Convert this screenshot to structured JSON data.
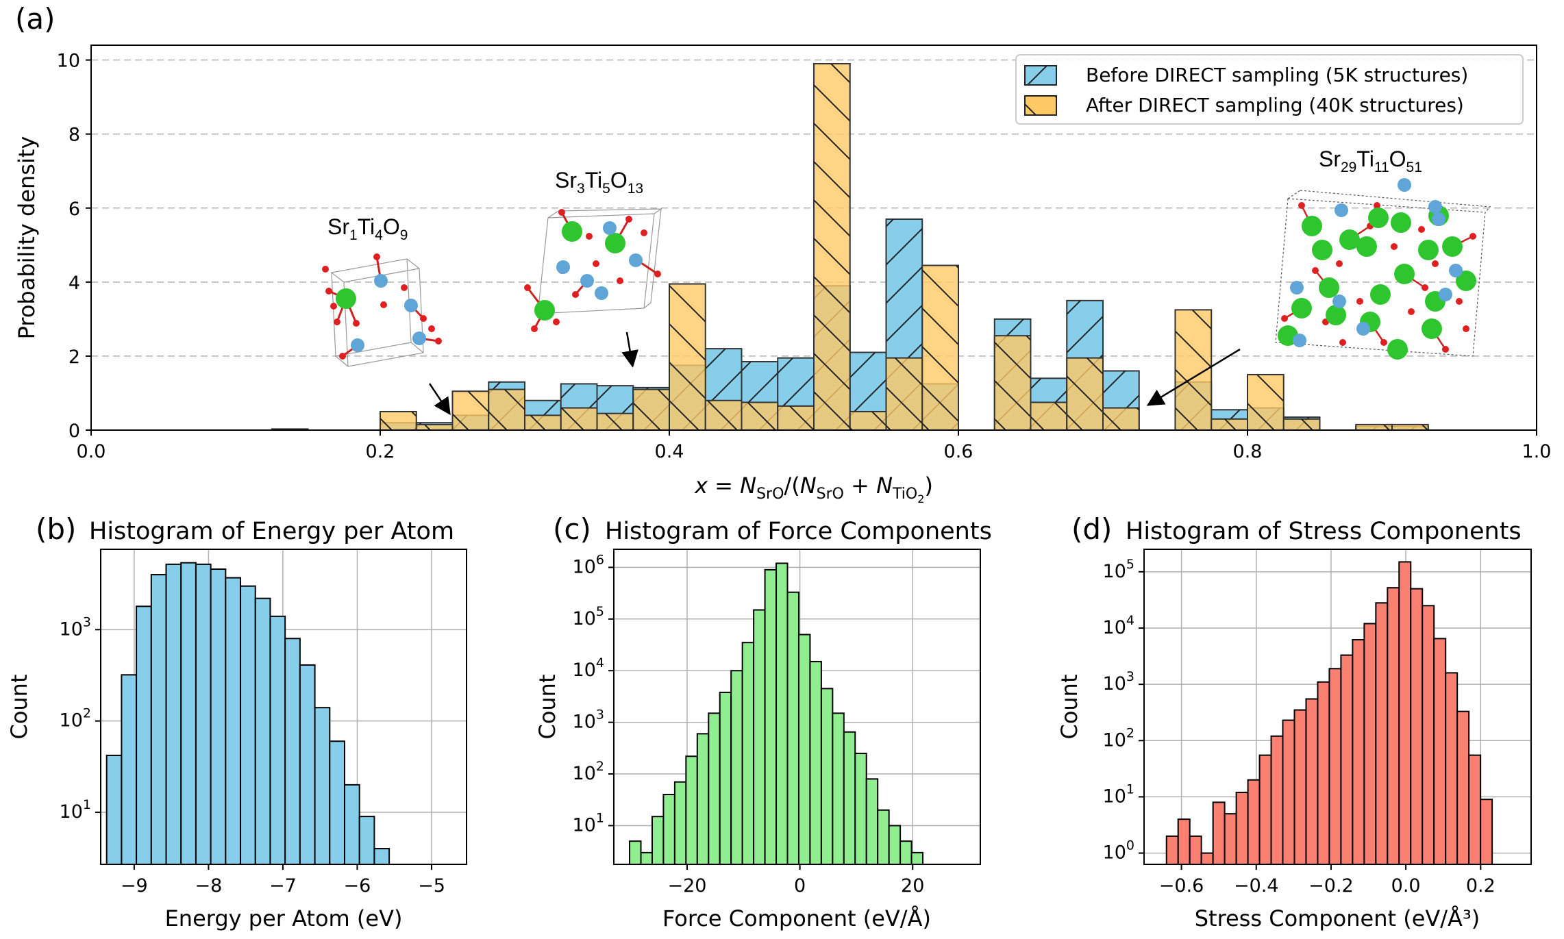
{
  "figure": {
    "panel_a": {
      "label": "(a)",
      "chart_data": {
        "type": "bar",
        "ylabel": "Probability density",
        "xlabel": "x = N_SrO/(N_SrO + N_TiO2)",
        "xlim": [
          0.0,
          1.0
        ],
        "ylim": [
          0,
          10.4
        ],
        "xticks": [
          "0.0",
          "0.2",
          "0.4",
          "0.6",
          "0.8",
          "1.0"
        ],
        "yticks": [
          "0",
          "2",
          "4",
          "6",
          "8",
          "10"
        ],
        "bin_width": 0.025,
        "series": [
          {
            "name": "Before DIRECT sampling (5K structures)",
            "color": "#87CEEB",
            "bins_left": [
              0.125,
              0.2,
              0.225,
              0.25,
              0.275,
              0.3,
              0.325,
              0.35,
              0.375,
              0.4,
              0.425,
              0.45,
              0.475,
              0.5,
              0.525,
              0.55,
              0.575,
              0.625,
              0.65,
              0.675,
              0.7,
              0.75,
              0.775,
              0.8,
              0.825,
              0.875,
              0.9
            ],
            "values": [
              0.03,
              0.2,
              0.2,
              0.4,
              1.3,
              0.8,
              1.25,
              1.2,
              1.15,
              1.75,
              2.2,
              1.85,
              1.95,
              3.9,
              2.1,
              5.7,
              1.25,
              3.0,
              1.4,
              3.5,
              1.6,
              1.3,
              0.55,
              0.6,
              0.35,
              0.1,
              0.1
            ]
          },
          {
            "name": "After DIRECT sampling (40K structures)",
            "color": "#FFC966",
            "bins_left": [
              0.125,
              0.2,
              0.225,
              0.25,
              0.275,
              0.3,
              0.325,
              0.35,
              0.375,
              0.4,
              0.425,
              0.45,
              0.475,
              0.5,
              0.525,
              0.55,
              0.575,
              0.625,
              0.65,
              0.675,
              0.7,
              0.75,
              0.775,
              0.8,
              0.825,
              0.875,
              0.9
            ],
            "values": [
              0.01,
              0.5,
              0.15,
              1.05,
              1.1,
              0.4,
              0.6,
              0.45,
              1.1,
              3.95,
              0.8,
              0.75,
              0.65,
              9.9,
              0.5,
              1.95,
              4.45,
              2.55,
              0.75,
              1.95,
              0.6,
              3.25,
              0.3,
              1.5,
              0.3,
              0.15,
              0.15
            ]
          }
        ]
      },
      "annotations": {
        "sr1_prefix": "Sr",
        "sr1_n": "1",
        "sr1_ti": "Ti",
        "sr1_tin": "4",
        "sr1_o": "O",
        "sr1_on": "9",
        "sr3_prefix": "Sr",
        "sr3_n": "3",
        "sr3_ti": "Ti",
        "sr3_tin": "5",
        "sr3_o": "O",
        "sr3_on": "13",
        "sr29_prefix": "Sr",
        "sr29_n": "29",
        "sr29_ti": "Ti",
        "sr29_tin": "11",
        "sr29_o": "O",
        "sr29_on": "51"
      }
    },
    "panel_b": {
      "label": "(b)",
      "title": "Histogram of Energy per Atom",
      "chart_data": {
        "type": "bar",
        "scale": "log",
        "xlabel": "Energy per Atom (eV)",
        "ylabel": "Count",
        "color": "#87CEEB",
        "xlim": [
          -9.45,
          -4.53
        ],
        "ylim_log10": [
          0.43,
          3.88
        ],
        "xticks": [
          "−9",
          "−8",
          "−7",
          "−6",
          "−5"
        ],
        "bin_start": -9.37,
        "bin_width": 0.2,
        "values": [
          42,
          320,
          1800,
          4000,
          5200,
          5400,
          5200,
          4600,
          3700,
          3000,
          2200,
          1400,
          800,
          410,
          140,
          60,
          20,
          9,
          4
        ]
      }
    },
    "panel_c": {
      "label": "(c)",
      "title": "Histogram of Force Components",
      "chart_data": {
        "type": "bar",
        "scale": "log",
        "xlabel": "Force Component (eV/Å)",
        "ylabel": "Count",
        "color": "#90EE90",
        "xlim": [
          -33.0,
          32.0
        ],
        "ylim_log10": [
          0.25,
          6.35
        ],
        "xticks": [
          "−20",
          "0",
          "20"
        ],
        "bin_start": -30.2,
        "bin_width": 2.0,
        "values": [
          5,
          3,
          15,
          40,
          70,
          220,
          600,
          1500,
          3800,
          10000,
          35000,
          150000,
          900000,
          1200000,
          330000,
          50000,
          15000,
          4500,
          1500,
          650,
          250,
          80,
          20,
          10,
          5,
          3
        ]
      }
    },
    "panel_d": {
      "label": "(d)",
      "title": "Histogram of Stress Components",
      "chart_data": {
        "type": "bar",
        "scale": "log",
        "xlabel": "Stress Component (eV/Å³)",
        "ylabel": "Count",
        "color": "#FA8072",
        "xlim": [
          -0.7,
          0.335
        ],
        "ylim_log10": [
          -0.2,
          5.4
        ],
        "xticks": [
          "−0.6",
          "−0.4",
          "−0.2",
          "0.0",
          "0.2"
        ],
        "bin_start": -0.64,
        "bin_width": 0.0311,
        "values": [
          2,
          4,
          2,
          1,
          8,
          5,
          12,
          20,
          55,
          120,
          230,
          350,
          550,
          1100,
          1900,
          3300,
          6200,
          12000,
          28000,
          52000,
          150000,
          50000,
          25000,
          6500,
          1600,
          330,
          55,
          9
        ]
      }
    }
  }
}
